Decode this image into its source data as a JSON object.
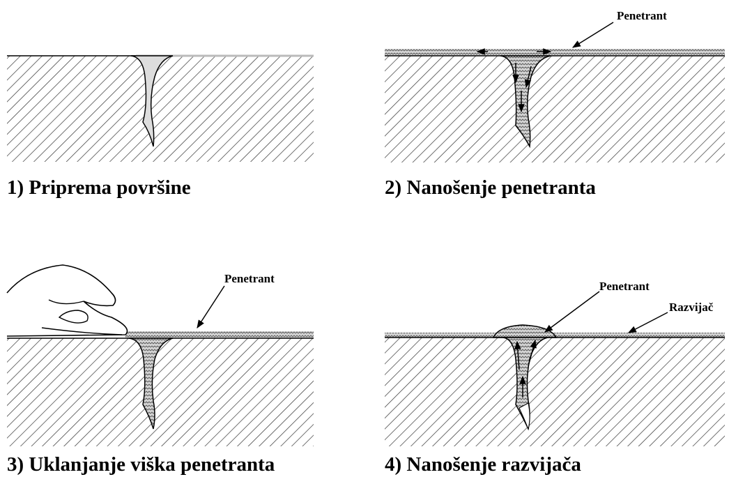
{
  "panels": [
    {
      "caption": "1) Priprema površine",
      "labels": []
    },
    {
      "caption": "2) Nanošenje penetranta",
      "labels": [
        "Penetrant"
      ]
    },
    {
      "caption": "3) Uklanjanje viška penetranta",
      "labels": [
        "Penetrant"
      ]
    },
    {
      "caption": "4) Nanošenje razvijača",
      "labels": [
        "Penetrant",
        "Razvijač"
      ]
    }
  ]
}
